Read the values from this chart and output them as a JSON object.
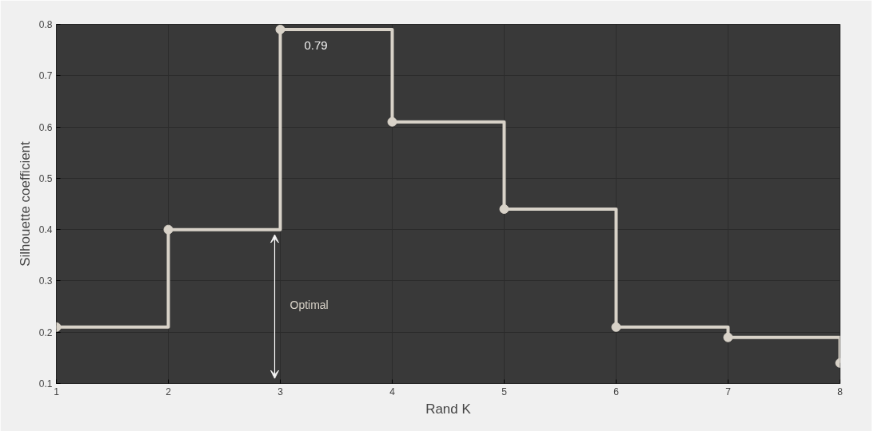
{
  "chart_data": {
    "type": "step",
    "xlabel": "Rand K",
    "ylabel": "Silhouette coefficient",
    "x": [
      1,
      2,
      3,
      4,
      5,
      6,
      7,
      8
    ],
    "series": [
      {
        "color": "#d8d2c8",
        "values": [
          0.21,
          0.4,
          0.79,
          0.61,
          0.44,
          0.21,
          0.19,
          0.14
        ]
      }
    ],
    "xlim": [
      1,
      8
    ],
    "ylim": [
      0.1,
      0.8
    ],
    "xticks": [
      1,
      2,
      3,
      4,
      5,
      6,
      7,
      8
    ],
    "yticks": [
      0.1,
      0.2,
      0.3,
      0.4,
      0.5,
      0.6,
      0.7,
      0.8
    ],
    "grid": true,
    "marker": "circle",
    "line_style": "solid",
    "annotations": [
      {
        "text": "0.79",
        "x": 3,
        "y": 0.79
      },
      "Optimal"
    ]
  }
}
